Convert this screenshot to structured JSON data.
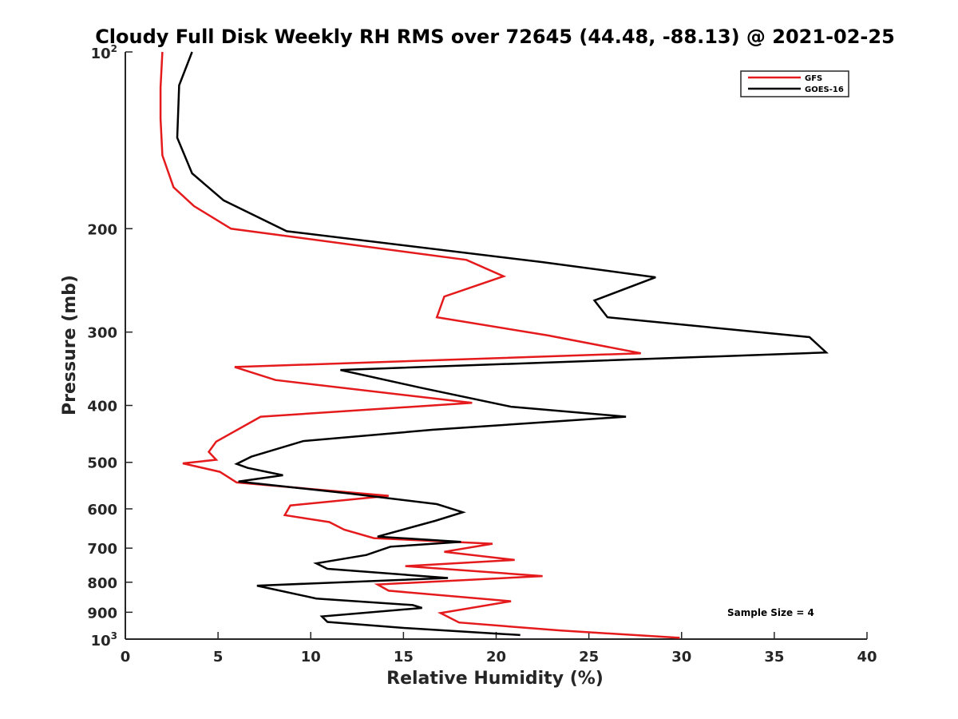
{
  "chart_data": {
    "type": "line",
    "title": "Cloudy Full Disk Weekly RH RMS over 72645 (44.48, -88.13) @ 2021-02-25",
    "xlabel": "Relative Humidity (%)",
    "ylabel": "Pressure (mb)",
    "xlim": [
      0,
      40
    ],
    "ylim": [
      100,
      1000
    ],
    "yscale": "log",
    "y_reversed": true,
    "grid": false,
    "legend_position": "top-right",
    "x_ticks": [
      "0",
      "5",
      "10",
      "15",
      "20",
      "25",
      "30",
      "35",
      "40"
    ],
    "x_tick_values": [
      0,
      5,
      10,
      15,
      20,
      25,
      30,
      35,
      40
    ],
    "y_ticks": [
      {
        "value": 100,
        "base": "10",
        "sup": "2",
        "label": ""
      },
      {
        "value": 200,
        "base": "",
        "sup": "",
        "label": "200"
      },
      {
        "value": 300,
        "base": "",
        "sup": "",
        "label": "300"
      },
      {
        "value": 400,
        "base": "",
        "sup": "",
        "label": "400"
      },
      {
        "value": 500,
        "base": "",
        "sup": "",
        "label": "500"
      },
      {
        "value": 600,
        "base": "",
        "sup": "",
        "label": "600"
      },
      {
        "value": 700,
        "base": "",
        "sup": "",
        "label": "700"
      },
      {
        "value": 800,
        "base": "",
        "sup": "",
        "label": "800"
      },
      {
        "value": 900,
        "base": "",
        "sup": "",
        "label": "900"
      },
      {
        "value": 1000,
        "base": "10",
        "sup": "3",
        "label": ""
      }
    ],
    "annotation": "Sample Size = 4",
    "series": [
      {
        "name": "GFS",
        "color": "#e41a1c",
        "x": [
          2.0,
          1.9,
          1.9,
          2.0,
          2.6,
          3.7,
          5.7,
          18.4,
          20.4,
          17.2,
          16.8,
          22.8,
          27.8,
          5.9,
          8.1,
          18.7,
          7.3,
          4.9,
          4.5,
          4.9,
          3.1,
          5.1,
          6.0,
          14.2,
          8.9,
          8.6,
          11.0,
          11.8,
          13.4,
          19.8,
          17.2,
          21.0,
          15.1,
          22.5,
          13.6,
          14.2,
          20.8,
          17.0,
          18.0,
          23.5,
          29.9
        ],
        "y": [
          100,
          115,
          130,
          150,
          170,
          183,
          200,
          226,
          241,
          261,
          283,
          304,
          326,
          344,
          362,
          396,
          418,
          461,
          480,
          495,
          502,
          519,
          541,
          570,
          592,
          615,
          632,
          651,
          673,
          688,
          710,
          733,
          751,
          781,
          807,
          827,
          862,
          903,
          937,
          967,
          995
        ]
      },
      {
        "name": "GOES-16",
        "color": "#000000",
        "x": [
          3.6,
          2.9,
          2.8,
          3.6,
          5.3,
          8.7,
          22.5,
          28.6,
          25.3,
          26.0,
          36.9,
          37.8,
          11.6,
          15.9,
          20.8,
          27.0,
          16.6,
          9.6,
          6.8,
          6.0,
          6.6,
          8.5,
          6.1,
          12.1,
          16.8,
          18.2,
          16.7,
          13.6,
          18.1,
          14.3,
          13.0,
          10.3,
          10.9,
          17.4,
          7.1,
          10.3,
          15.5,
          16.0,
          10.6,
          10.9,
          15.2,
          21.3
        ],
        "y": [
          100,
          114,
          140,
          161,
          179,
          202,
          228,
          242,
          265,
          283,
          306,
          325,
          348,
          373,
          402,
          418,
          440,
          460,
          489,
          503,
          511,
          526,
          539,
          565,
          589,
          608,
          629,
          669,
          683,
          696,
          719,
          743,
          759,
          787,
          811,
          853,
          875,
          885,
          915,
          935,
          958,
          984
        ]
      }
    ]
  }
}
